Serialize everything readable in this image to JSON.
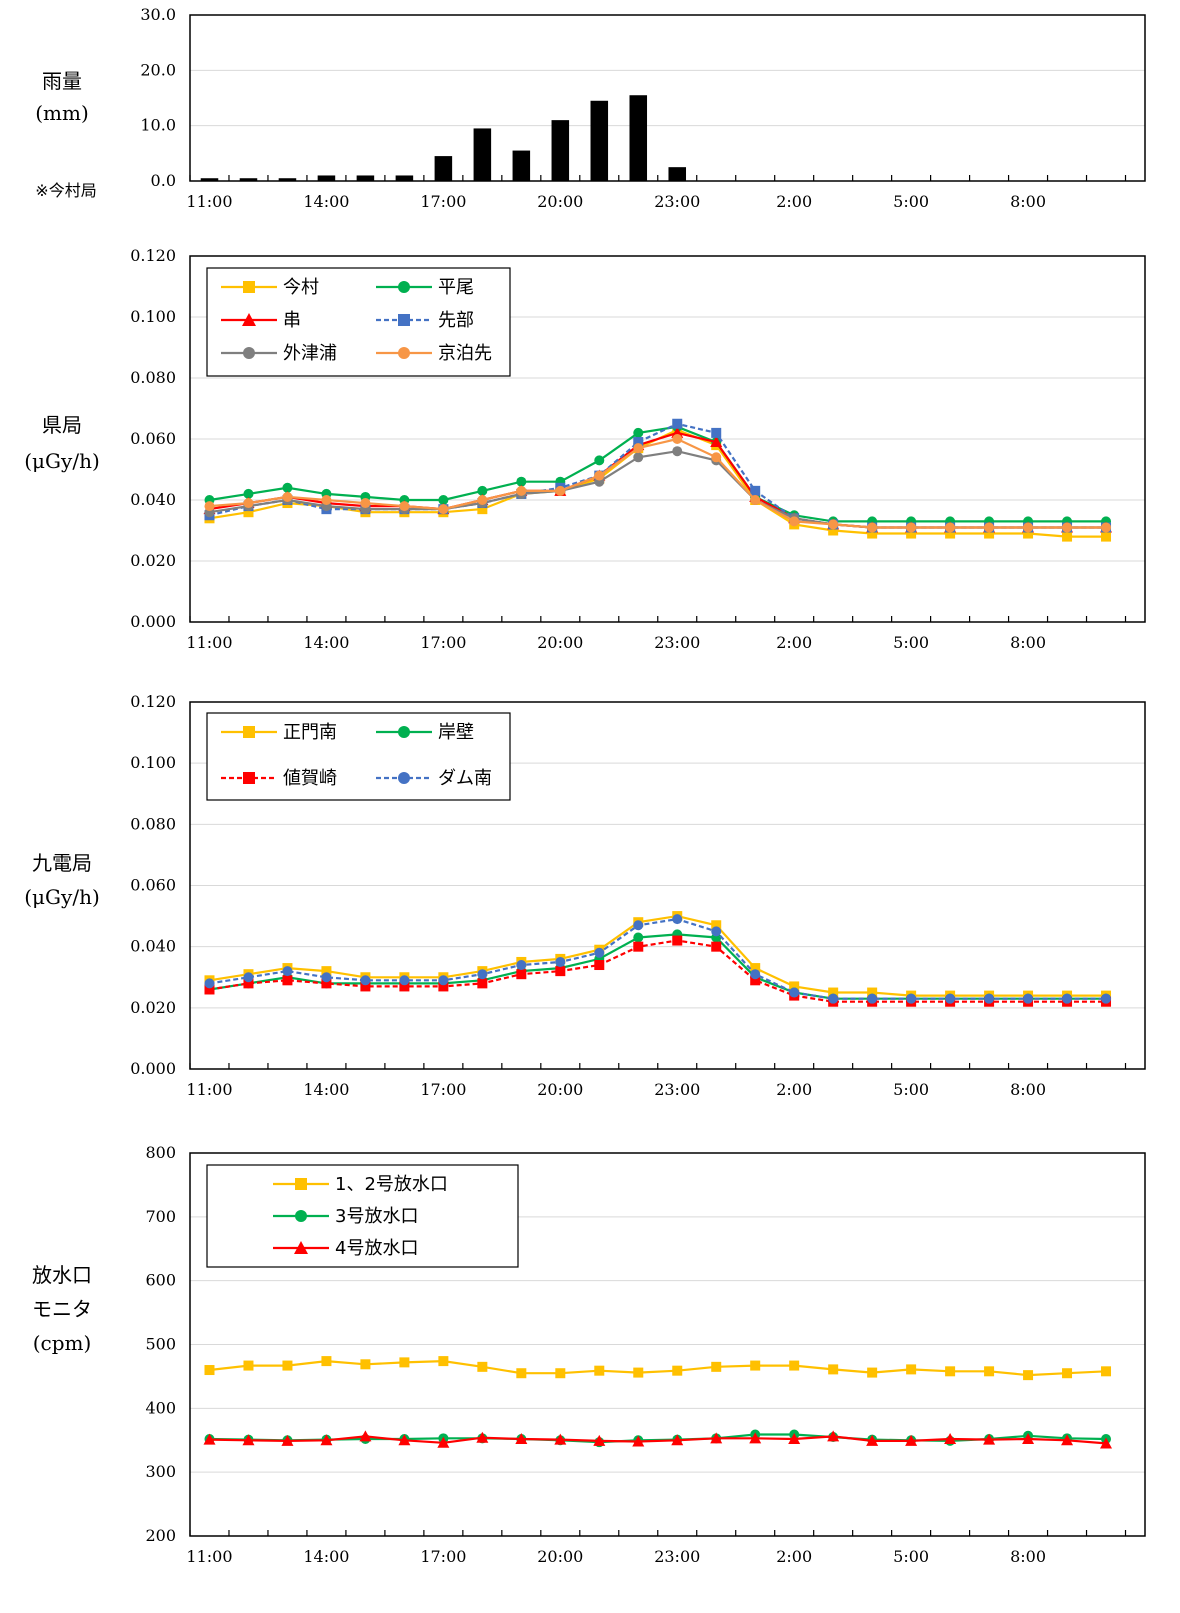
{
  "chart_data": [
    {
      "type": "bar",
      "ylabel": "雨量",
      "unit": "(mm)",
      "note": "※今村局",
      "ylim": [
        0,
        30
      ],
      "yticks": [
        "0.0",
        "10.0",
        "20.0",
        "30.0"
      ],
      "xticks": [
        "11:00",
        "14:00",
        "17:00",
        "20:00",
        "23:00",
        "2:00",
        "5:00",
        "8:00"
      ],
      "values": [
        0.5,
        0.5,
        0.5,
        1.0,
        1.0,
        1.0,
        4.5,
        9.5,
        5.5,
        11.0,
        14.5,
        15.5,
        2.5,
        0,
        0,
        0,
        0,
        0,
        0,
        0,
        0,
        0,
        0,
        0
      ],
      "color": "#000000"
    },
    {
      "type": "line",
      "ylabel": "県局",
      "unit": "(μGy/h)",
      "ylim": [
        0,
        0.12
      ],
      "yticks": [
        "0.000",
        "0.020",
        "0.040",
        "0.060",
        "0.080",
        "0.100",
        "0.120"
      ],
      "xticks": [
        "11:00",
        "14:00",
        "17:00",
        "20:00",
        "23:00",
        "2:00",
        "5:00",
        "8:00"
      ],
      "legend_cols": 2,
      "series": [
        {
          "name": "今村",
          "color": "#FFC000",
          "marker": "square",
          "dash": false,
          "values": [
            0.034,
            0.036,
            0.039,
            0.038,
            0.036,
            0.036,
            0.036,
            0.037,
            0.042,
            0.043,
            0.047,
            0.057,
            0.063,
            0.058,
            0.04,
            0.032,
            0.03,
            0.029,
            0.029,
            0.029,
            0.029,
            0.029,
            0.028,
            0.028
          ]
        },
        {
          "name": "平尾",
          "color": "#00B050",
          "marker": "circle",
          "dash": false,
          "values": [
            0.04,
            0.042,
            0.044,
            0.042,
            0.041,
            0.04,
            0.04,
            0.043,
            0.046,
            0.046,
            0.053,
            0.062,
            0.064,
            0.059,
            0.041,
            0.035,
            0.033,
            0.033,
            0.033,
            0.033,
            0.033,
            0.033,
            0.033,
            0.033
          ]
        },
        {
          "name": "串",
          "color": "#FF0000",
          "marker": "triangle",
          "dash": false,
          "values": [
            0.037,
            0.039,
            0.041,
            0.039,
            0.038,
            0.038,
            0.037,
            0.04,
            0.043,
            0.043,
            0.048,
            0.058,
            0.062,
            0.059,
            0.041,
            0.034,
            0.032,
            0.031,
            0.031,
            0.031,
            0.031,
            0.031,
            0.031,
            0.031
          ]
        },
        {
          "name": "先部",
          "color": "#4472C4",
          "marker": "square",
          "dash": true,
          "values": [
            0.035,
            0.038,
            0.04,
            0.037,
            0.037,
            0.037,
            0.037,
            0.039,
            0.042,
            0.044,
            0.048,
            0.059,
            0.065,
            0.062,
            0.043,
            0.034,
            0.032,
            0.031,
            0.031,
            0.031,
            0.031,
            0.031,
            0.031,
            0.031
          ]
        },
        {
          "name": "外津浦",
          "color": "#7F7F7F",
          "marker": "circle",
          "dash": false,
          "values": [
            0.036,
            0.038,
            0.04,
            0.038,
            0.037,
            0.037,
            0.037,
            0.039,
            0.042,
            0.043,
            0.046,
            0.054,
            0.056,
            0.053,
            0.04,
            0.034,
            0.032,
            0.031,
            0.031,
            0.031,
            0.031,
            0.031,
            0.031,
            0.031
          ]
        },
        {
          "name": "京泊先",
          "color": "#F79646",
          "marker": "circle",
          "dash": false,
          "values": [
            0.038,
            0.039,
            0.041,
            0.04,
            0.039,
            0.038,
            0.037,
            0.04,
            0.043,
            0.043,
            0.048,
            0.057,
            0.06,
            0.054,
            0.04,
            0.033,
            0.032,
            0.031,
            0.031,
            0.031,
            0.031,
            0.031,
            0.031,
            0.031
          ]
        }
      ]
    },
    {
      "type": "line",
      "ylabel": "九電局",
      "unit": "(μGy/h)",
      "ylim": [
        0,
        0.12
      ],
      "yticks": [
        "0.000",
        "0.020",
        "0.040",
        "0.060",
        "0.080",
        "0.100",
        "0.120"
      ],
      "xticks": [
        "11:00",
        "14:00",
        "17:00",
        "20:00",
        "23:00",
        "2:00",
        "5:00",
        "8:00"
      ],
      "legend_cols": 2,
      "series": [
        {
          "name": "正門南",
          "color": "#FFC000",
          "marker": "square",
          "dash": false,
          "values": [
            0.029,
            0.031,
            0.033,
            0.032,
            0.03,
            0.03,
            0.03,
            0.032,
            0.035,
            0.036,
            0.039,
            0.048,
            0.05,
            0.047,
            0.033,
            0.027,
            0.025,
            0.025,
            0.024,
            0.024,
            0.024,
            0.024,
            0.024,
            0.024
          ]
        },
        {
          "name": "岸壁",
          "color": "#00B050",
          "marker": "circle",
          "dash": false,
          "values": [
            0.026,
            0.028,
            0.03,
            0.028,
            0.028,
            0.028,
            0.028,
            0.029,
            0.032,
            0.033,
            0.036,
            0.043,
            0.044,
            0.043,
            0.03,
            0.025,
            0.023,
            0.023,
            0.023,
            0.023,
            0.023,
            0.023,
            0.023,
            0.023
          ]
        },
        {
          "name": "値賀崎",
          "color": "#FF0000",
          "marker": "square",
          "dash": true,
          "values": [
            0.026,
            0.028,
            0.029,
            0.028,
            0.027,
            0.027,
            0.027,
            0.028,
            0.031,
            0.032,
            0.034,
            0.04,
            0.042,
            0.04,
            0.029,
            0.024,
            0.022,
            0.022,
            0.022,
            0.022,
            0.022,
            0.022,
            0.022,
            0.022
          ]
        },
        {
          "name": "ダム南",
          "color": "#4472C4",
          "marker": "circle",
          "dash": true,
          "values": [
            0.028,
            0.03,
            0.032,
            0.03,
            0.029,
            0.029,
            0.029,
            0.031,
            0.034,
            0.035,
            0.038,
            0.047,
            0.049,
            0.045,
            0.031,
            0.025,
            0.023,
            0.023,
            0.023,
            0.023,
            0.023,
            0.023,
            0.023,
            0.023
          ]
        }
      ]
    },
    {
      "type": "line",
      "ylabel": "放水口",
      "ylabel2": "モニタ",
      "unit": "(cpm)",
      "ylim": [
        200,
        800
      ],
      "yticks": [
        "200",
        "300",
        "400",
        "500",
        "600",
        "700",
        "800"
      ],
      "xticks": [
        "11:00",
        "14:00",
        "17:00",
        "20:00",
        "23:00",
        "2:00",
        "5:00",
        "8:00"
      ],
      "legend_cols": 1,
      "series": [
        {
          "name": "1、2号放水口",
          "color": "#FFC000",
          "marker": "square",
          "dash": false,
          "values": [
            460,
            467,
            467,
            474,
            469,
            472,
            474,
            465,
            455,
            455,
            459,
            456,
            459,
            465,
            467,
            467,
            461,
            456,
            461,
            458,
            458,
            452,
            455,
            458
          ]
        },
        {
          "name": "3号放水口",
          "color": "#00B050",
          "marker": "circle",
          "dash": false,
          "values": [
            352,
            351,
            350,
            351,
            352,
            352,
            353,
            353,
            352,
            350,
            347,
            350,
            351,
            353,
            359,
            359,
            355,
            351,
            350,
            349,
            352,
            357,
            353,
            352
          ]
        },
        {
          "name": "4号放水口",
          "color": "#FF0000",
          "marker": "triangle",
          "dash": false,
          "values": [
            351,
            350,
            349,
            350,
            356,
            350,
            346,
            354,
            352,
            351,
            349,
            348,
            350,
            353,
            353,
            352,
            356,
            349,
            349,
            352,
            351,
            352,
            350,
            345
          ]
        }
      ]
    }
  ]
}
